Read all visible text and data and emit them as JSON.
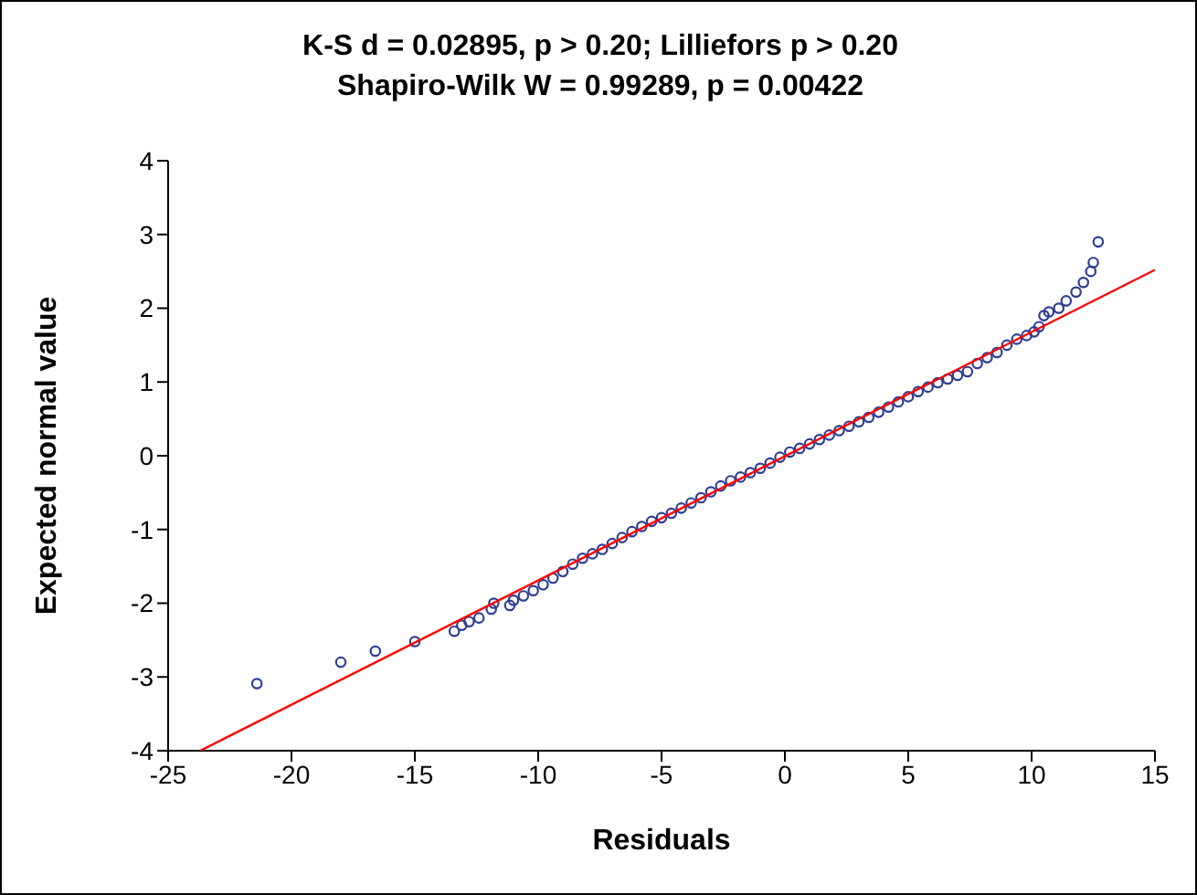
{
  "chart_data": {
    "type": "scatter",
    "title": "K-S d = 0.02895, p > 0.20; Lilliefors p > 0.20",
    "subtitle": "Shapiro-Wilk W = 0.99289, p = 0.00422",
    "xlabel": "Residuals",
    "ylabel": "Expected normal value",
    "xlim": [
      -25,
      15
    ],
    "ylim": [
      -4,
      4
    ],
    "xticks": [
      -25,
      -20,
      -15,
      -10,
      -5,
      0,
      5,
      10,
      15
    ],
    "yticks": [
      -4,
      -3,
      -2,
      -1,
      0,
      1,
      2,
      3,
      4
    ],
    "grid": false,
    "marker": "circle",
    "series": [
      {
        "color": "#2e3d91",
        "x": [
          -21.4,
          -18.0,
          -16.6,
          -15.0,
          -13.4,
          -13.1,
          -12.8,
          -12.4,
          -11.9,
          -11.8,
          -11.15,
          -11.0,
          -10.6,
          -10.2,
          -9.8,
          -9.4,
          -9.0,
          -8.6,
          -8.2,
          -7.8,
          -7.4,
          -7.0,
          -6.6,
          -6.2,
          -5.8,
          -5.4,
          -5.0,
          -4.6,
          -4.2,
          -3.8,
          -3.4,
          -3.0,
          -2.6,
          -2.2,
          -1.8,
          -1.4,
          -1.0,
          -0.6,
          -0.2,
          0.2,
          0.6,
          1.0,
          1.4,
          1.8,
          2.2,
          2.6,
          3.0,
          3.4,
          3.8,
          4.2,
          4.6,
          5.0,
          5.4,
          5.8,
          6.2,
          6.6,
          7.0,
          7.4,
          7.8,
          8.2,
          8.6,
          9.0,
          9.4,
          9.8,
          10.1,
          10.3,
          10.5,
          10.7,
          11.1,
          11.4,
          11.8,
          12.1,
          12.4,
          12.5,
          12.7
        ],
        "values": [
          -3.09,
          -2.8,
          -2.65,
          -2.52,
          -2.38,
          -2.3,
          -2.25,
          -2.2,
          -2.08,
          -2.0,
          -2.03,
          -1.96,
          -1.9,
          -1.83,
          -1.75,
          -1.66,
          -1.57,
          -1.47,
          -1.39,
          -1.33,
          -1.27,
          -1.19,
          -1.11,
          -1.03,
          -0.96,
          -0.89,
          -0.84,
          -0.78,
          -0.71,
          -0.64,
          -0.57,
          -0.49,
          -0.41,
          -0.34,
          -0.29,
          -0.23,
          -0.17,
          -0.1,
          -0.02,
          0.05,
          0.1,
          0.16,
          0.22,
          0.28,
          0.34,
          0.4,
          0.46,
          0.52,
          0.59,
          0.66,
          0.73,
          0.8,
          0.87,
          0.93,
          0.99,
          1.04,
          1.09,
          1.14,
          1.25,
          1.33,
          1.4,
          1.5,
          1.58,
          1.63,
          1.68,
          1.75,
          1.9,
          1.95,
          2.0,
          2.1,
          2.22,
          2.35,
          2.5,
          2.62,
          2.9
        ]
      },
      {
        "type": "line",
        "marker": "none",
        "color": "#ff0000",
        "x": [
          -23.7,
          15
        ],
        "values": [
          -4,
          2.52
        ]
      }
    ]
  }
}
